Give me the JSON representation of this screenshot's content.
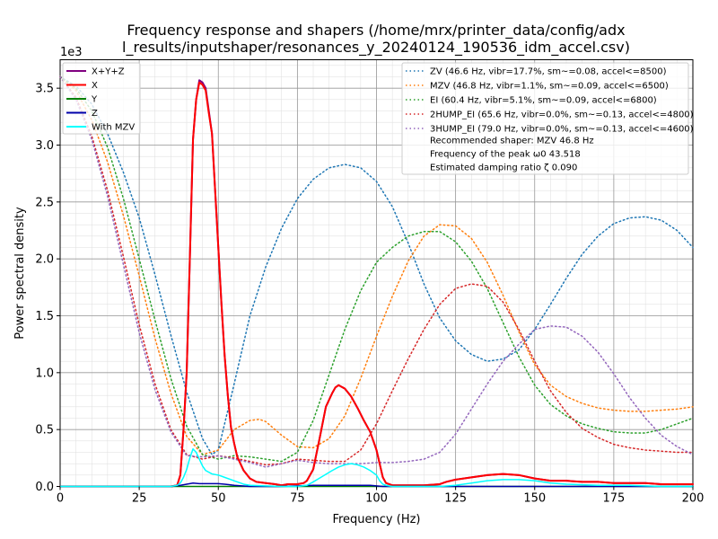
{
  "chart_data": {
    "type": "line",
    "title_lines": [
      "Frequency response and shapers (/home/mrx/printer_data/config/adx",
      "l_results/inputshaper/resonances_y_20240124_190536_idm_accel.csv)"
    ],
    "xlabel": "Frequency (Hz)",
    "ylabel": "Power spectral density",
    "y_offset_label": "1e3",
    "xlim": [
      0,
      200
    ],
    "ylim": [
      0,
      3.75
    ],
    "xticks": [
      0,
      25,
      50,
      75,
      100,
      125,
      150,
      175,
      200
    ],
    "xtick_labels": [
      "0",
      "25",
      "50",
      "75",
      "100",
      "125",
      "150",
      "175",
      "200"
    ],
    "yticks": [
      0,
      0.5,
      1.0,
      1.5,
      2.0,
      2.5,
      3.0,
      3.5
    ],
    "ytick_labels": [
      "0.0",
      "0.5",
      "1.0",
      "1.5",
      "2.0",
      "2.5",
      "3.0",
      "3.5"
    ],
    "grid": true,
    "series": [
      {
        "name": "X+Y+Z",
        "color": "#800080",
        "style": "solid",
        "x": [
          0,
          5,
          10,
          15,
          20,
          25,
          30,
          35,
          37,
          38,
          39,
          40,
          41,
          42,
          43,
          44,
          45,
          46,
          47,
          48,
          49,
          50,
          51,
          52,
          53,
          54,
          55,
          56,
          58,
          60,
          62,
          65,
          68,
          70,
          72,
          75,
          77,
          78,
          80,
          82,
          84,
          86,
          87,
          88,
          90,
          92,
          94,
          96,
          98,
          99,
          100,
          101,
          102,
          103,
          105,
          110,
          115,
          120,
          122,
          125,
          130,
          135,
          140,
          145,
          150,
          155,
          160,
          165,
          170,
          175,
          180,
          185,
          190,
          195,
          200
        ],
        "y": [
          0,
          0,
          0,
          0,
          0,
          0,
          0,
          0,
          0.01,
          0.1,
          0.5,
          1.0,
          2.0,
          3.05,
          3.4,
          3.57,
          3.55,
          3.5,
          3.3,
          3.1,
          2.6,
          2.1,
          1.6,
          1.15,
          0.8,
          0.52,
          0.38,
          0.26,
          0.14,
          0.07,
          0.04,
          0.03,
          0.02,
          0.01,
          0.02,
          0.02,
          0.03,
          0.05,
          0.15,
          0.42,
          0.7,
          0.82,
          0.87,
          0.89,
          0.86,
          0.79,
          0.69,
          0.58,
          0.48,
          0.4,
          0.32,
          0.2,
          0.08,
          0.03,
          0.01,
          0.01,
          0.01,
          0.02,
          0.04,
          0.06,
          0.08,
          0.1,
          0.11,
          0.1,
          0.07,
          0.05,
          0.05,
          0.04,
          0.04,
          0.03,
          0.03,
          0.03,
          0.02,
          0.02,
          0.02
        ]
      },
      {
        "name": "X",
        "color": "#ff0000",
        "style": "solid",
        "x": [
          0,
          5,
          10,
          15,
          20,
          25,
          30,
          35,
          37,
          38,
          39,
          40,
          41,
          42,
          43,
          44,
          45,
          46,
          47,
          48,
          49,
          50,
          51,
          52,
          53,
          54,
          55,
          56,
          58,
          60,
          62,
          65,
          68,
          70,
          72,
          75,
          77,
          78,
          80,
          82,
          84,
          86,
          87,
          88,
          90,
          92,
          94,
          96,
          98,
          99,
          100,
          101,
          102,
          103,
          105,
          110,
          115,
          120,
          122,
          125,
          130,
          135,
          140,
          145,
          150,
          155,
          160,
          165,
          170,
          175,
          180,
          185,
          190,
          195,
          200
        ],
        "y": [
          0,
          0,
          0,
          0,
          0,
          0,
          0,
          0,
          0.01,
          0.1,
          0.5,
          1.0,
          2.0,
          3.05,
          3.4,
          3.55,
          3.53,
          3.48,
          3.28,
          3.1,
          2.6,
          2.1,
          1.6,
          1.15,
          0.8,
          0.52,
          0.38,
          0.26,
          0.14,
          0.07,
          0.04,
          0.03,
          0.02,
          0.01,
          0.02,
          0.02,
          0.03,
          0.05,
          0.15,
          0.42,
          0.7,
          0.82,
          0.87,
          0.89,
          0.86,
          0.79,
          0.69,
          0.58,
          0.48,
          0.4,
          0.32,
          0.2,
          0.08,
          0.03,
          0.01,
          0.01,
          0.01,
          0.02,
          0.04,
          0.06,
          0.08,
          0.1,
          0.11,
          0.1,
          0.07,
          0.05,
          0.05,
          0.04,
          0.04,
          0.03,
          0.03,
          0.03,
          0.02,
          0.02,
          0.02
        ]
      },
      {
        "name": "Y",
        "color": "#008000",
        "style": "solid",
        "x": [
          0,
          50,
          100,
          150,
          200
        ],
        "y": [
          0,
          0,
          0,
          0,
          0
        ]
      },
      {
        "name": "Z",
        "color": "#0000aa",
        "style": "solid",
        "x": [
          0,
          35,
          38,
          40,
          42,
          44,
          46,
          48,
          50,
          52,
          55,
          60,
          70,
          80,
          85,
          88,
          90,
          95,
          98,
          100,
          102,
          105,
          110,
          200
        ],
        "y": [
          0,
          0,
          0.01,
          0.02,
          0.03,
          0.025,
          0.025,
          0.025,
          0.025,
          0.02,
          0.01,
          0,
          0,
          0.01,
          0.01,
          0.01,
          0.01,
          0.01,
          0.01,
          0.005,
          0,
          0,
          0,
          0
        ]
      },
      {
        "name": "With MZV",
        "color": "#00ffff",
        "style": "solid",
        "x": [
          0,
          35,
          37,
          38,
          39,
          40,
          41,
          42,
          43,
          44,
          45,
          46,
          48,
          50,
          52,
          55,
          58,
          60,
          65,
          70,
          75,
          78,
          80,
          83,
          86,
          88,
          90,
          92,
          94,
          96,
          98,
          100,
          101,
          102,
          103,
          105,
          110,
          115,
          120,
          125,
          130,
          135,
          140,
          145,
          150,
          155,
          160,
          170,
          180,
          190,
          200
        ],
        "y": [
          0,
          0,
          0.01,
          0.03,
          0.08,
          0.15,
          0.25,
          0.33,
          0.3,
          0.24,
          0.18,
          0.14,
          0.11,
          0.1,
          0.08,
          0.05,
          0.02,
          0.01,
          0.005,
          0,
          0,
          0.01,
          0.04,
          0.09,
          0.14,
          0.17,
          0.19,
          0.2,
          0.19,
          0.17,
          0.14,
          0.1,
          0.05,
          0.02,
          0.01,
          0,
          0,
          0,
          0,
          0.01,
          0.03,
          0.05,
          0.06,
          0.06,
          0.05,
          0.03,
          0.02,
          0.01,
          0.01,
          0,
          0
        ]
      },
      {
        "name": "ZV (46.6 Hz, vibr=17.7%, sm~=0.08, accel<=8500)",
        "color": "#1f77b4",
        "style": "dotted",
        "x": [
          0,
          5,
          10,
          15,
          20,
          25,
          30,
          35,
          40,
          45,
          48,
          50,
          55,
          60,
          65,
          70,
          75,
          80,
          85,
          90,
          95,
          100,
          105,
          110,
          115,
          120,
          125,
          130,
          135,
          140,
          145,
          150,
          155,
          160,
          165,
          170,
          175,
          180,
          185,
          190,
          195,
          200
        ],
        "y": [
          3.6,
          3.52,
          3.36,
          3.1,
          2.76,
          2.36,
          1.86,
          1.33,
          0.83,
          0.42,
          0.28,
          0.32,
          0.9,
          1.5,
          1.93,
          2.27,
          2.53,
          2.7,
          2.8,
          2.83,
          2.8,
          2.68,
          2.46,
          2.14,
          1.78,
          1.48,
          1.28,
          1.16,
          1.1,
          1.12,
          1.2,
          1.38,
          1.6,
          1.83,
          2.04,
          2.2,
          2.31,
          2.36,
          2.37,
          2.34,
          2.25,
          2.1
        ]
      },
      {
        "name": "MZV (46.8 Hz, vibr=1.1%, sm~=0.09, accel<=6500)",
        "color": "#ff7f0e",
        "style": "dotted",
        "x": [
          0,
          5,
          10,
          15,
          20,
          25,
          30,
          35,
          40,
          45,
          50,
          55,
          60,
          63,
          65,
          70,
          75,
          80,
          85,
          90,
          95,
          100,
          105,
          110,
          115,
          120,
          125,
          130,
          135,
          140,
          145,
          150,
          155,
          160,
          165,
          170,
          175,
          180,
          185,
          190,
          195,
          200
        ],
        "y": [
          3.6,
          3.48,
          3.22,
          2.85,
          2.38,
          1.85,
          1.3,
          0.82,
          0.44,
          0.28,
          0.32,
          0.5,
          0.58,
          0.59,
          0.57,
          0.45,
          0.35,
          0.34,
          0.42,
          0.62,
          0.95,
          1.32,
          1.67,
          1.98,
          2.2,
          2.3,
          2.29,
          2.18,
          1.97,
          1.68,
          1.36,
          1.07,
          0.89,
          0.79,
          0.73,
          0.69,
          0.67,
          0.66,
          0.66,
          0.67,
          0.68,
          0.7
        ]
      },
      {
        "name": "EI (60.4 Hz, vibr=5.1%, sm~=0.09, accel<=6800)",
        "color": "#2ca02c",
        "style": "dotted",
        "x": [
          0,
          5,
          10,
          15,
          20,
          25,
          30,
          35,
          40,
          45,
          50,
          55,
          60,
          65,
          70,
          75,
          80,
          85,
          90,
          95,
          100,
          105,
          110,
          115,
          120,
          125,
          130,
          135,
          140,
          145,
          150,
          155,
          160,
          165,
          170,
          175,
          180,
          185,
          190,
          195,
          200
        ],
        "y": [
          3.6,
          3.5,
          3.3,
          2.98,
          2.53,
          2.0,
          1.46,
          0.95,
          0.53,
          0.28,
          0.24,
          0.27,
          0.26,
          0.24,
          0.22,
          0.3,
          0.58,
          0.98,
          1.38,
          1.72,
          1.97,
          2.1,
          2.2,
          2.24,
          2.24,
          2.15,
          1.98,
          1.74,
          1.44,
          1.14,
          0.89,
          0.72,
          0.62,
          0.55,
          0.51,
          0.48,
          0.47,
          0.47,
          0.5,
          0.55,
          0.6
        ]
      },
      {
        "name": "2HUMP_EI (65.6 Hz, vibr=0.0%, sm~=0.13, accel<=4800)",
        "color": "#d62728",
        "style": "dotted",
        "x": [
          0,
          5,
          10,
          15,
          20,
          25,
          30,
          35,
          40,
          45,
          50,
          55,
          60,
          65,
          70,
          75,
          80,
          85,
          90,
          95,
          100,
          105,
          110,
          115,
          120,
          125,
          130,
          135,
          140,
          145,
          150,
          155,
          160,
          165,
          170,
          175,
          180,
          185,
          190,
          195,
          200
        ],
        "y": [
          3.6,
          3.42,
          3.08,
          2.6,
          2.02,
          1.42,
          0.9,
          0.5,
          0.28,
          0.24,
          0.27,
          0.25,
          0.22,
          0.19,
          0.2,
          0.24,
          0.23,
          0.22,
          0.22,
          0.32,
          0.55,
          0.84,
          1.12,
          1.38,
          1.6,
          1.74,
          1.78,
          1.76,
          1.62,
          1.38,
          1.1,
          0.84,
          0.65,
          0.51,
          0.43,
          0.37,
          0.34,
          0.32,
          0.31,
          0.3,
          0.3
        ]
      },
      {
        "name": "3HUMP_EI (79.0 Hz, vibr=0.0%, sm~=0.13, accel<=4600)",
        "color": "#9467bd",
        "style": "dotted",
        "x": [
          0,
          5,
          10,
          15,
          20,
          25,
          30,
          35,
          40,
          45,
          50,
          55,
          60,
          65,
          70,
          75,
          80,
          85,
          90,
          95,
          100,
          105,
          110,
          115,
          120,
          125,
          130,
          135,
          140,
          145,
          150,
          155,
          160,
          165,
          170,
          175,
          180,
          185,
          190,
          195,
          200
        ],
        "y": [
          3.6,
          3.4,
          3.05,
          2.55,
          1.95,
          1.35,
          0.85,
          0.48,
          0.27,
          0.26,
          0.27,
          0.24,
          0.21,
          0.17,
          0.2,
          0.23,
          0.21,
          0.2,
          0.2,
          0.2,
          0.21,
          0.21,
          0.22,
          0.24,
          0.3,
          0.46,
          0.68,
          0.9,
          1.1,
          1.25,
          1.38,
          1.41,
          1.4,
          1.32,
          1.18,
          0.99,
          0.78,
          0.6,
          0.45,
          0.35,
          0.28
        ]
      }
    ],
    "legend_left_location": "upper-left",
    "legend_right_location": "upper-right",
    "legend_right_extra": [
      "Recommended shaper: MZV 46.8 Hz",
      "Frequency of the peak ω0 43.518",
      "Estimated damping ratio ζ 0.090"
    ]
  }
}
